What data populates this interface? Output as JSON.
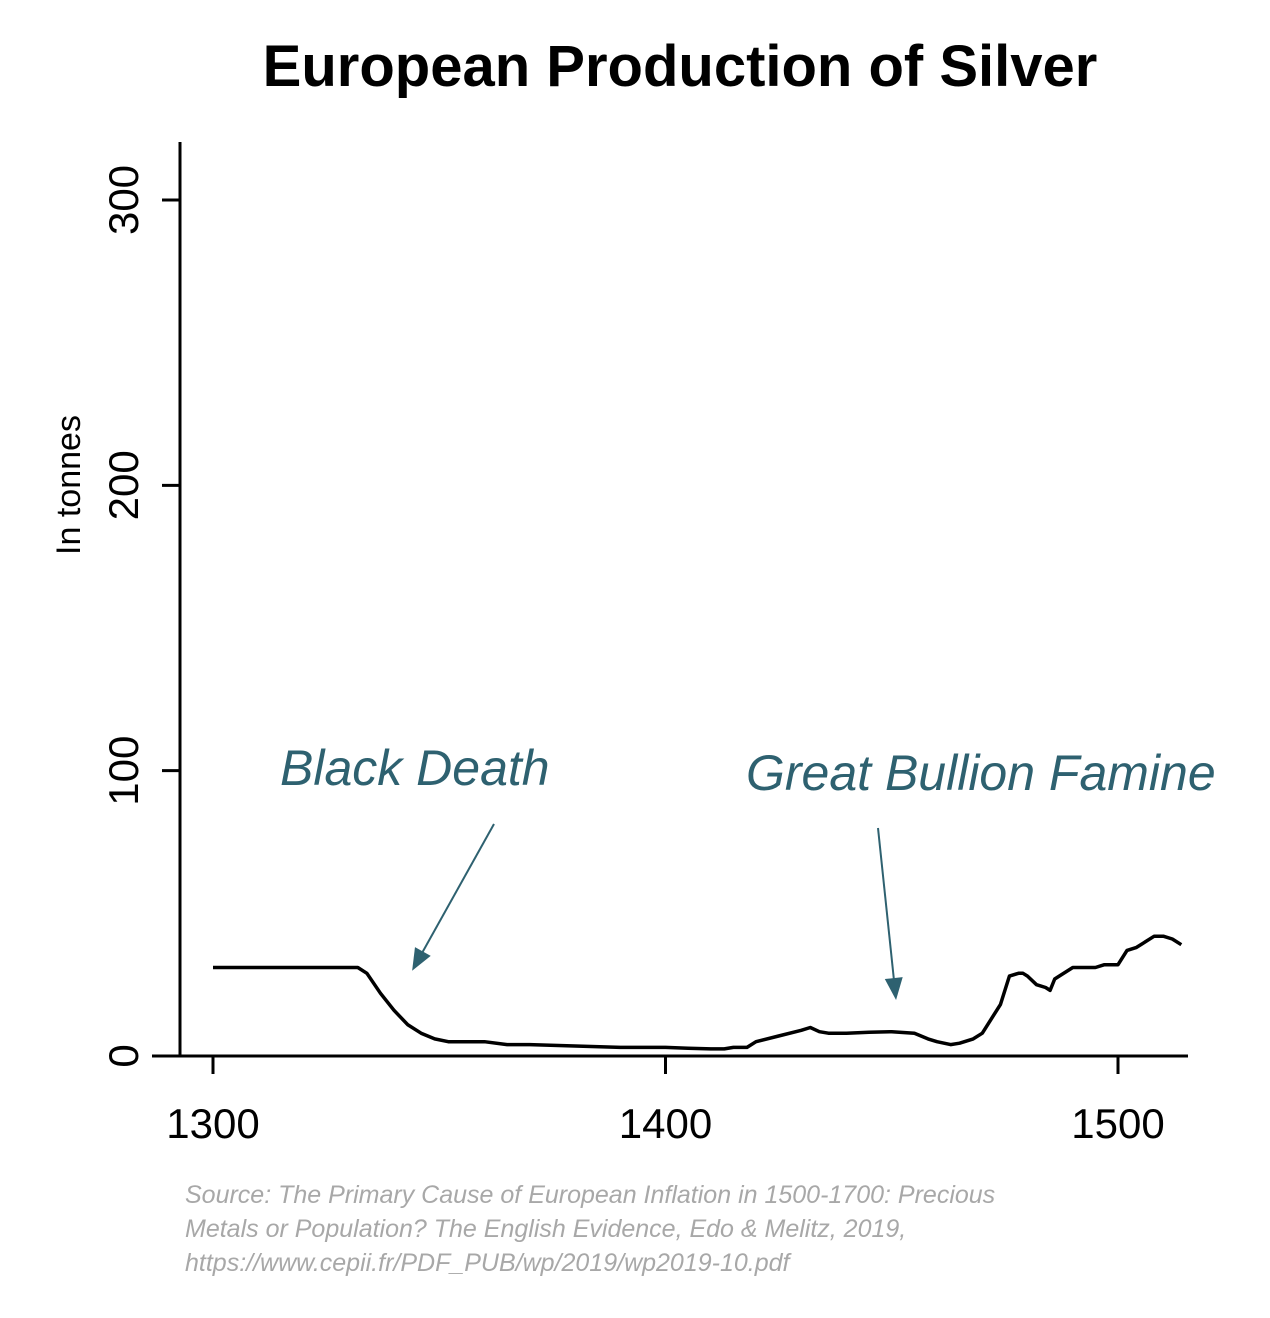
{
  "chart_data": {
    "type": "line",
    "title": "European Production of Silver",
    "xlabel": "",
    "ylabel": "In tonnes",
    "xlim": [
      1293,
      1515
    ],
    "ylim": [
      0,
      320
    ],
    "x_ticks": [
      1300,
      1400,
      1500
    ],
    "x_tick_labels": [
      "1300",
      "1400",
      "1500"
    ],
    "y_ticks": [
      0,
      100,
      200,
      300
    ],
    "y_tick_labels": [
      "0",
      "100",
      "200",
      "300"
    ],
    "grid": false,
    "series": [
      {
        "name": "European Production of Silver",
        "x": [
          1300,
          1332,
          1334,
          1337,
          1340,
          1343,
          1346,
          1349,
          1352,
          1360,
          1365,
          1370,
          1380,
          1390,
          1400,
          1405,
          1410,
          1413,
          1415,
          1418,
          1420,
          1425,
          1430,
          1432,
          1434,
          1436,
          1440,
          1445,
          1450,
          1455,
          1458,
          1460,
          1463,
          1465,
          1468,
          1470,
          1472,
          1474,
          1475,
          1476,
          1478,
          1479,
          1480,
          1482,
          1484,
          1485,
          1486,
          1487,
          1490,
          1493,
          1495,
          1497,
          1499,
          1500,
          1502,
          1504,
          1506,
          1508,
          1510,
          1512,
          1514
        ],
        "y": [
          31,
          31,
          29,
          22,
          16,
          11,
          8,
          6,
          5,
          5,
          4,
          4,
          3.5,
          3,
          3,
          2.7,
          2.5,
          2.5,
          3,
          3,
          5,
          7,
          9,
          10,
          8.5,
          8,
          8,
          8.3,
          8.5,
          8,
          6,
          5,
          4,
          4.5,
          6,
          8,
          13,
          18,
          23,
          28,
          29,
          29,
          28,
          25,
          24,
          23,
          27,
          28,
          31,
          31,
          31,
          32,
          32,
          32,
          37,
          38,
          40,
          42,
          42,
          41,
          39
        ]
      }
    ],
    "annotations": [
      {
        "text": "Black Death",
        "points_to_x": 1343,
        "points_to_y": 29
      },
      {
        "text": "Great Bullion Famine",
        "points_to_x": 1452,
        "points_to_y": 18
      }
    ],
    "colors": {
      "line": "#000000",
      "axis": "#000000",
      "annotation": "#2e6170",
      "source": "#a8a8a8"
    }
  },
  "source_note": {
    "line1": "Source: The Primary Cause of European Inflation in 1500-1700: Precious",
    "line2": "Metals or Population? The English Evidence, Edo & Melitz, 2019,",
    "line3": "https://www.cepii.fr/PDF_PUB/wp/2019/wp2019-10.pdf"
  }
}
